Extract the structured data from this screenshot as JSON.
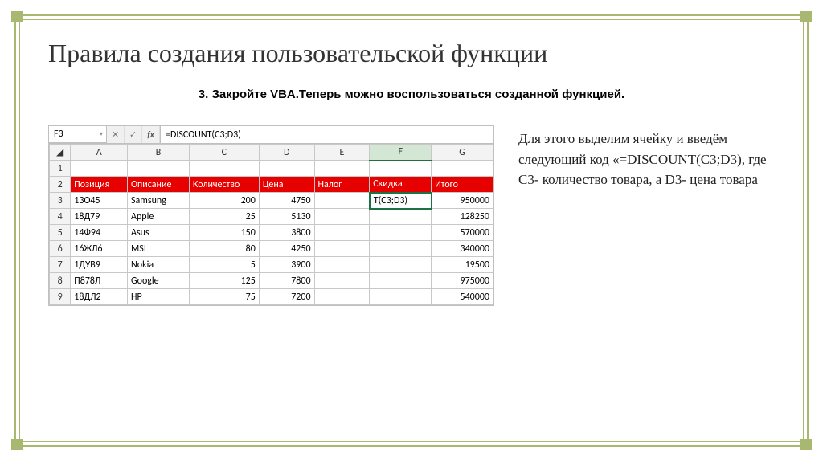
{
  "slide": {
    "title": "Правила создания пользовательской функции",
    "subtitle": "3. Закройте VBA.Теперь можно воспользоваться созданной функцией.",
    "side_text": "Для этого выделим ячейку и введём следующий код «=DISCOUNT(C3;D3), где С3- количество товара, а D3- цена товара",
    "frame_color": "#a8b870"
  },
  "excel": {
    "namebox": "F3",
    "formula": "=DISCOUNT(C3;D3)",
    "col_headers": [
      "A",
      "B",
      "C",
      "D",
      "E",
      "F",
      "G"
    ],
    "selected_col": "F",
    "header_row": [
      "Позиция",
      "Описание",
      "Количество",
      "Цена",
      "Налог",
      "Скидка",
      "Итого"
    ],
    "header_bg": "#e60000",
    "header_fg": "#ffffff",
    "rows": [
      {
        "n": "1",
        "cells": [
          "",
          "",
          "",
          "",
          "",
          "",
          ""
        ]
      },
      {
        "n": "3",
        "cells": [
          "13О45",
          "Samsung",
          "200",
          "4750",
          "",
          "T(C3;D3)",
          "950000"
        ]
      },
      {
        "n": "4",
        "cells": [
          "18Д79",
          "Apple",
          "25",
          "5130",
          "",
          "",
          "128250"
        ]
      },
      {
        "n": "5",
        "cells": [
          "14Ф94",
          "Asus",
          "150",
          "3800",
          "",
          "",
          "570000"
        ]
      },
      {
        "n": "6",
        "cells": [
          "16ЖЛ6",
          "MSI",
          "80",
          "4250",
          "",
          "",
          "340000"
        ]
      },
      {
        "n": "7",
        "cells": [
          "1ДУВ9",
          "Nokia",
          "5",
          "3900",
          "",
          "",
          "19500"
        ]
      },
      {
        "n": "8",
        "cells": [
          "П878Л",
          "Google",
          "125",
          "7800",
          "",
          "",
          "975000"
        ]
      },
      {
        "n": "9",
        "cells": [
          "18ДЛ2",
          "HP",
          "75",
          "7200",
          "",
          "",
          "540000"
        ]
      }
    ],
    "selected_cell_row": "3",
    "selected_cell_col": 5
  }
}
